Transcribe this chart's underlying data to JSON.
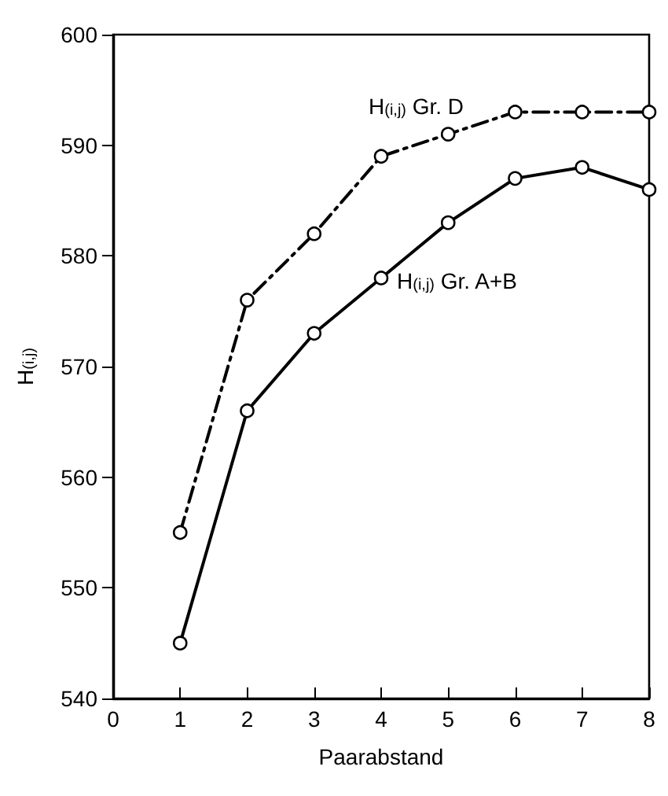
{
  "chart_data": {
    "type": "line",
    "xlabel": "Paarabstand",
    "ylabel": "H$_{(i,j)}$",
    "x": [
      1,
      2,
      3,
      4,
      5,
      6,
      7,
      8
    ],
    "series": [
      {
        "name": "H$_{(i,j)}$ Gr. D",
        "color": "#000000",
        "line_style": "dashed",
        "values": [
          555,
          576,
          582,
          589,
          591,
          593,
          593,
          593
        ]
      },
      {
        "name": "H$_{(i,j)}$ Gr. A+B",
        "color": "#000000",
        "line_style": "solid",
        "values": [
          545,
          566,
          573,
          578,
          583,
          587,
          588,
          586
        ]
      }
    ],
    "xlim": [
      0,
      8
    ],
    "xticks": [
      0,
      1,
      2,
      3,
      4,
      5,
      6,
      7,
      8
    ],
    "ylim": [
      540,
      600
    ],
    "yticks": [
      540,
      550,
      560,
      570,
      580,
      590,
      600
    ],
    "grid": false,
    "legend": false,
    "marker": "circle"
  }
}
